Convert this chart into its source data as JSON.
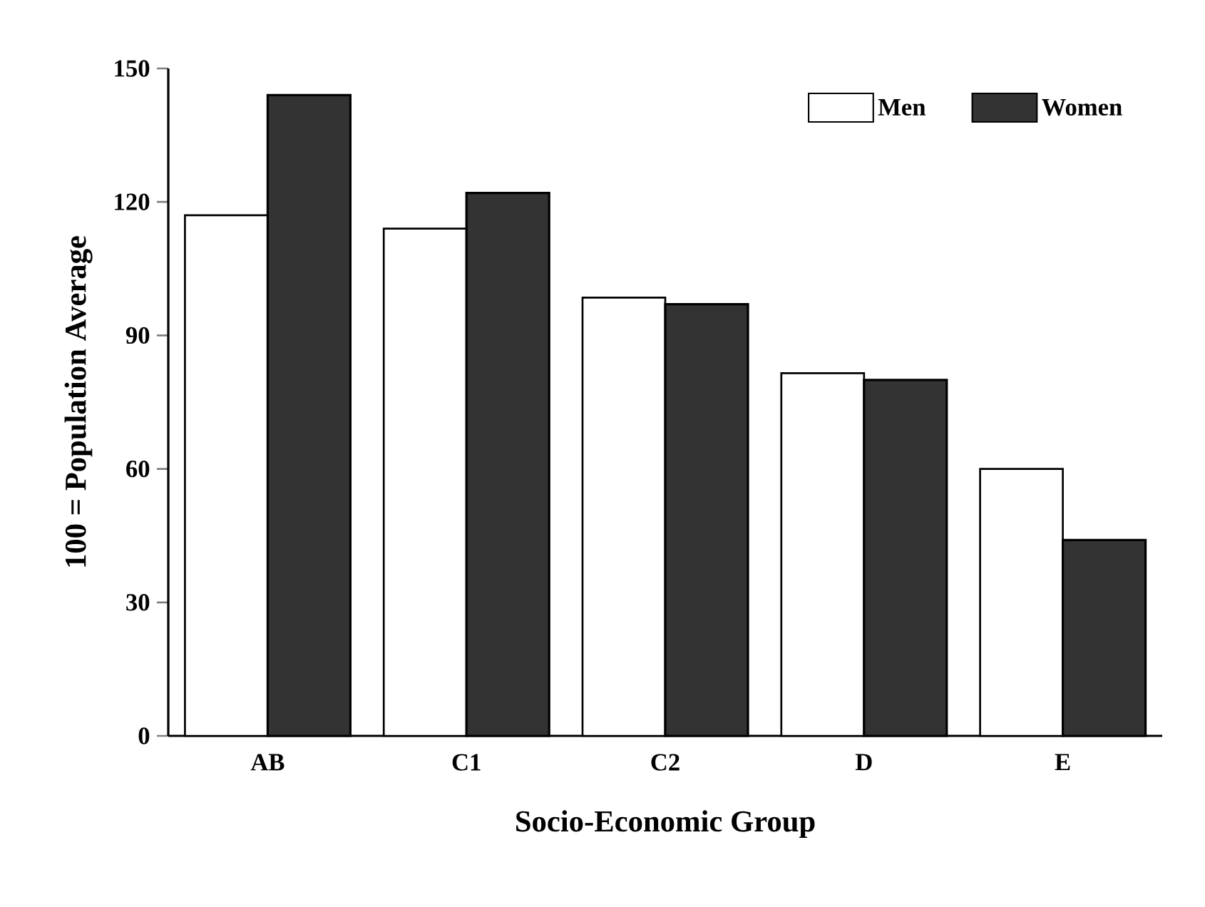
{
  "chart_data": {
    "type": "bar",
    "xlabel": "Socio-Economic Group",
    "ylabel": "100 = Population Average",
    "categories": [
      "AB",
      "C1",
      "C2",
      "D",
      "E"
    ],
    "series": [
      {
        "name": "Men",
        "color": "#ffffff",
        "values": [
          117,
          114,
          98.5,
          81.5,
          60
        ]
      },
      {
        "name": "Women",
        "color": "#333333",
        "values": [
          144,
          122,
          97,
          80,
          44
        ]
      }
    ],
    "ylim": [
      0,
      150
    ],
    "yticks": [
      0,
      30,
      60,
      90,
      120,
      150
    ],
    "legend": "top right",
    "grid": false
  }
}
